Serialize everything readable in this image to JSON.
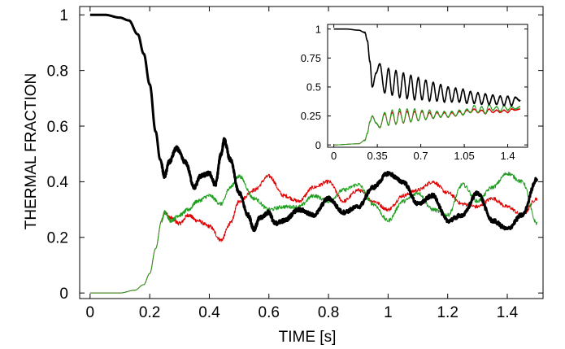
{
  "chart_data": [
    {
      "type": "line",
      "title": "",
      "xlabel": "TIME [s]",
      "ylabel": "THERMAL FRACTION",
      "xlim": [
        -0.035,
        1.52
      ],
      "ylim": [
        -0.02,
        1.03
      ],
      "xticks": [
        0,
        0.2,
        0.4,
        0.6,
        0.8,
        1,
        1.2,
        1.4
      ],
      "xtick_labels": [
        "0",
        "0.2",
        "0.4",
        "0.6",
        "0.8",
        "1",
        "1.2",
        "1.4"
      ],
      "yticks": [
        0,
        0.2,
        0.4,
        0.6,
        0.8,
        1
      ],
      "ytick_labels": [
        "0",
        "0.2",
        "0.4",
        "0.6",
        "0.8",
        "1"
      ],
      "grid": false,
      "series": [
        {
          "color": "#000000",
          "x": [
            0,
            0.05,
            0.1,
            0.13,
            0.16,
            0.18,
            0.2,
            0.22,
            0.235,
            0.25,
            0.265,
            0.29,
            0.32,
            0.35,
            0.37,
            0.4,
            0.42,
            0.44,
            0.45,
            0.47,
            0.5,
            0.53,
            0.55,
            0.57,
            0.6,
            0.62,
            0.65,
            0.7,
            0.75,
            0.8,
            0.85,
            0.9,
            0.95,
            1.0,
            1.05,
            1.1,
            1.15,
            1.2,
            1.25,
            1.3,
            1.35,
            1.4,
            1.45,
            1.5
          ],
          "y": [
            1.0,
            1.0,
            0.99,
            0.98,
            0.93,
            0.86,
            0.75,
            0.58,
            0.48,
            0.42,
            0.47,
            0.52,
            0.47,
            0.38,
            0.42,
            0.43,
            0.39,
            0.5,
            0.55,
            0.48,
            0.36,
            0.28,
            0.23,
            0.27,
            0.29,
            0.25,
            0.26,
            0.3,
            0.28,
            0.34,
            0.29,
            0.31,
            0.38,
            0.43,
            0.4,
            0.32,
            0.35,
            0.26,
            0.28,
            0.36,
            0.26,
            0.23,
            0.28,
            0.41
          ]
        },
        {
          "color": "#e00000",
          "x": [
            0,
            0.1,
            0.15,
            0.18,
            0.2,
            0.22,
            0.24,
            0.25,
            0.27,
            0.3,
            0.33,
            0.36,
            0.4,
            0.44,
            0.47,
            0.5,
            0.55,
            0.6,
            0.65,
            0.7,
            0.75,
            0.8,
            0.85,
            0.9,
            0.95,
            1.0,
            1.05,
            1.1,
            1.15,
            1.2,
            1.25,
            1.3,
            1.35,
            1.4,
            1.45,
            1.5
          ],
          "y": [
            0.0,
            0.0,
            0.01,
            0.03,
            0.07,
            0.16,
            0.26,
            0.29,
            0.27,
            0.25,
            0.28,
            0.26,
            0.24,
            0.19,
            0.25,
            0.33,
            0.37,
            0.42,
            0.35,
            0.33,
            0.38,
            0.4,
            0.33,
            0.37,
            0.33,
            0.3,
            0.35,
            0.37,
            0.4,
            0.36,
            0.32,
            0.31,
            0.34,
            0.31,
            0.28,
            0.34
          ]
        },
        {
          "color": "#1f9e1f",
          "x": [
            0,
            0.1,
            0.15,
            0.18,
            0.2,
            0.22,
            0.24,
            0.25,
            0.27,
            0.3,
            0.33,
            0.36,
            0.4,
            0.44,
            0.47,
            0.5,
            0.55,
            0.6,
            0.65,
            0.7,
            0.75,
            0.8,
            0.85,
            0.9,
            0.95,
            1.0,
            1.05,
            1.1,
            1.15,
            1.2,
            1.25,
            1.3,
            1.35,
            1.4,
            1.45,
            1.5
          ],
          "y": [
            0.0,
            0.0,
            0.01,
            0.03,
            0.07,
            0.16,
            0.26,
            0.29,
            0.26,
            0.28,
            0.3,
            0.33,
            0.35,
            0.32,
            0.38,
            0.42,
            0.34,
            0.3,
            0.31,
            0.31,
            0.35,
            0.33,
            0.37,
            0.39,
            0.32,
            0.26,
            0.33,
            0.36,
            0.3,
            0.28,
            0.39,
            0.33,
            0.38,
            0.43,
            0.4,
            0.25
          ]
        }
      ]
    },
    {
      "type": "line",
      "title": "",
      "xlabel": "",
      "ylabel": "",
      "xlim": [
        -0.05,
        1.56
      ],
      "ylim": [
        -0.02,
        1.04
      ],
      "xticks": [
        0,
        0.35,
        0.7,
        1.05,
        1.4
      ],
      "xtick_labels": [
        "0",
        "0.35",
        "0.7",
        "1.05",
        "1.4"
      ],
      "yticks": [
        0,
        0.25,
        0.5,
        0.75,
        1
      ],
      "ytick_labels": [
        "0",
        "0.25",
        "0.5",
        "0.75",
        "1"
      ],
      "grid": false,
      "series": [
        {
          "color": "#000000",
          "x": [
            0,
            0.1,
            0.2,
            0.25,
            0.27,
            0.29,
            0.31,
            0.34,
            0.37,
            0.41,
            0.44,
            0.47,
            0.5,
            0.53,
            0.56,
            0.59,
            0.62,
            0.65,
            0.68,
            0.71,
            0.74,
            0.77,
            0.8,
            0.83,
            0.86,
            0.89,
            0.92,
            0.95,
            0.98,
            1.01,
            1.04,
            1.07,
            1.1,
            1.13,
            1.16,
            1.19,
            1.22,
            1.25,
            1.28,
            1.31,
            1.34,
            1.37,
            1.4,
            1.43,
            1.46,
            1.5
          ],
          "y": [
            1.0,
            1.0,
            0.99,
            0.97,
            0.9,
            0.72,
            0.5,
            0.62,
            0.7,
            0.45,
            0.66,
            0.43,
            0.64,
            0.41,
            0.62,
            0.4,
            0.6,
            0.39,
            0.58,
            0.39,
            0.56,
            0.38,
            0.54,
            0.38,
            0.52,
            0.37,
            0.5,
            0.37,
            0.49,
            0.37,
            0.48,
            0.36,
            0.46,
            0.36,
            0.45,
            0.35,
            0.44,
            0.35,
            0.43,
            0.35,
            0.42,
            0.34,
            0.42,
            0.34,
            0.41,
            0.38
          ]
        },
        {
          "color": "#e00000",
          "x": [
            0,
            0.2,
            0.25,
            0.27,
            0.29,
            0.31,
            0.34,
            0.37,
            0.41,
            0.44,
            0.47,
            0.5,
            0.53,
            0.56,
            0.59,
            0.62,
            0.65,
            0.68,
            0.71,
            0.74,
            0.77,
            0.8,
            0.83,
            0.86,
            0.89,
            0.92,
            0.95,
            0.98,
            1.01,
            1.04,
            1.07,
            1.1,
            1.13,
            1.16,
            1.19,
            1.22,
            1.25,
            1.28,
            1.31,
            1.34,
            1.37,
            1.4,
            1.43,
            1.46,
            1.5
          ],
          "y": [
            0.0,
            0.01,
            0.04,
            0.1,
            0.2,
            0.25,
            0.19,
            0.15,
            0.27,
            0.17,
            0.28,
            0.18,
            0.29,
            0.19,
            0.29,
            0.2,
            0.29,
            0.21,
            0.29,
            0.22,
            0.28,
            0.23,
            0.28,
            0.24,
            0.28,
            0.24,
            0.28,
            0.25,
            0.29,
            0.26,
            0.3,
            0.28,
            0.31,
            0.28,
            0.3,
            0.27,
            0.31,
            0.28,
            0.3,
            0.28,
            0.3,
            0.28,
            0.31,
            0.3,
            0.31
          ]
        },
        {
          "color": "#1f9e1f",
          "x": [
            0,
            0.2,
            0.25,
            0.27,
            0.29,
            0.31,
            0.34,
            0.37,
            0.41,
            0.44,
            0.47,
            0.5,
            0.53,
            0.56,
            0.59,
            0.62,
            0.65,
            0.68,
            0.71,
            0.74,
            0.77,
            0.8,
            0.83,
            0.86,
            0.89,
            0.92,
            0.95,
            0.98,
            1.01,
            1.04,
            1.07,
            1.1,
            1.13,
            1.16,
            1.19,
            1.22,
            1.25,
            1.28,
            1.31,
            1.34,
            1.37,
            1.4,
            1.43,
            1.46,
            1.5
          ],
          "y": [
            0.0,
            0.01,
            0.04,
            0.1,
            0.2,
            0.25,
            0.19,
            0.15,
            0.28,
            0.17,
            0.3,
            0.18,
            0.31,
            0.19,
            0.31,
            0.2,
            0.31,
            0.21,
            0.3,
            0.22,
            0.3,
            0.23,
            0.29,
            0.24,
            0.29,
            0.24,
            0.29,
            0.25,
            0.3,
            0.26,
            0.31,
            0.28,
            0.34,
            0.28,
            0.33,
            0.27,
            0.35,
            0.3,
            0.33,
            0.29,
            0.34,
            0.3,
            0.33,
            0.31,
            0.33
          ]
        }
      ]
    }
  ]
}
